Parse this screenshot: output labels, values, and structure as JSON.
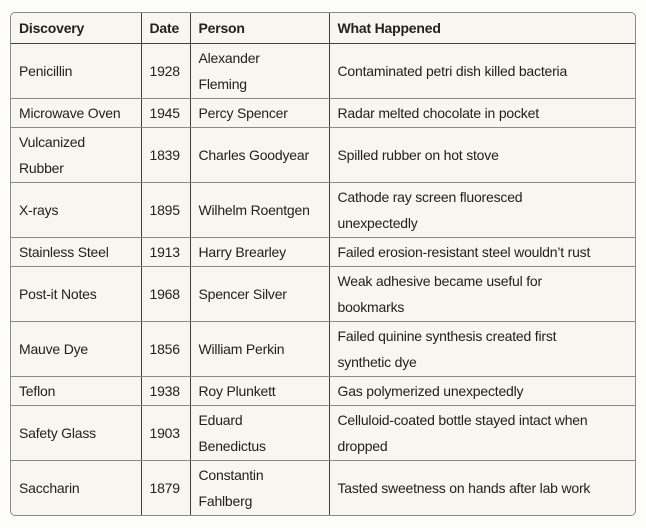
{
  "colors": {
    "page_bg": "#fdfdfc",
    "cell_bg": "#f8f6f0",
    "text": "#22211e",
    "border_outer": "#8c8a83",
    "border_h": "#8c8a83",
    "border_v": "#42413c"
  },
  "chart_data": {
    "type": "table",
    "columns": [
      "Discovery",
      "Date",
      "Person",
      "What Happened"
    ],
    "column_keys": [
      "discovery",
      "date",
      "person",
      "what-happened"
    ],
    "rows": [
      [
        "Penicillin",
        "1928",
        "Alexander\nFleming",
        "Contaminated petri dish killed bacteria"
      ],
      [
        "Microwave Oven",
        "1945",
        "Percy Spencer",
        "Radar melted chocolate in pocket"
      ],
      [
        "Vulcanized\nRubber",
        "1839",
        "Charles Goodyear",
        "Spilled rubber on hot stove"
      ],
      [
        "X-rays",
        "1895",
        "Wilhelm Roentgen",
        "Cathode ray screen fluoresced\nunexpectedly"
      ],
      [
        "Stainless Steel",
        "1913",
        "Harry Brearley",
        "Failed erosion-resistant steel wouldn’t rust"
      ],
      [
        "Post-it Notes",
        "1968",
        "Spencer Silver",
        "Weak adhesive became useful for\nbookmarks"
      ],
      [
        "Mauve Dye",
        "1856",
        "William Perkin",
        "Failed quinine synthesis created first\nsynthetic dye"
      ],
      [
        "Teflon",
        "1938",
        "Roy Plunkett",
        "Gas polymerized unexpectedly"
      ],
      [
        "Safety Glass",
        "1903",
        "Eduard\nBenedictus",
        "Celluloid-coated bottle stayed intact when\ndropped"
      ],
      [
        "Saccharin",
        "1879",
        "Constantin\nFahlberg",
        "Tasted sweetness on hands after lab work"
      ]
    ]
  }
}
